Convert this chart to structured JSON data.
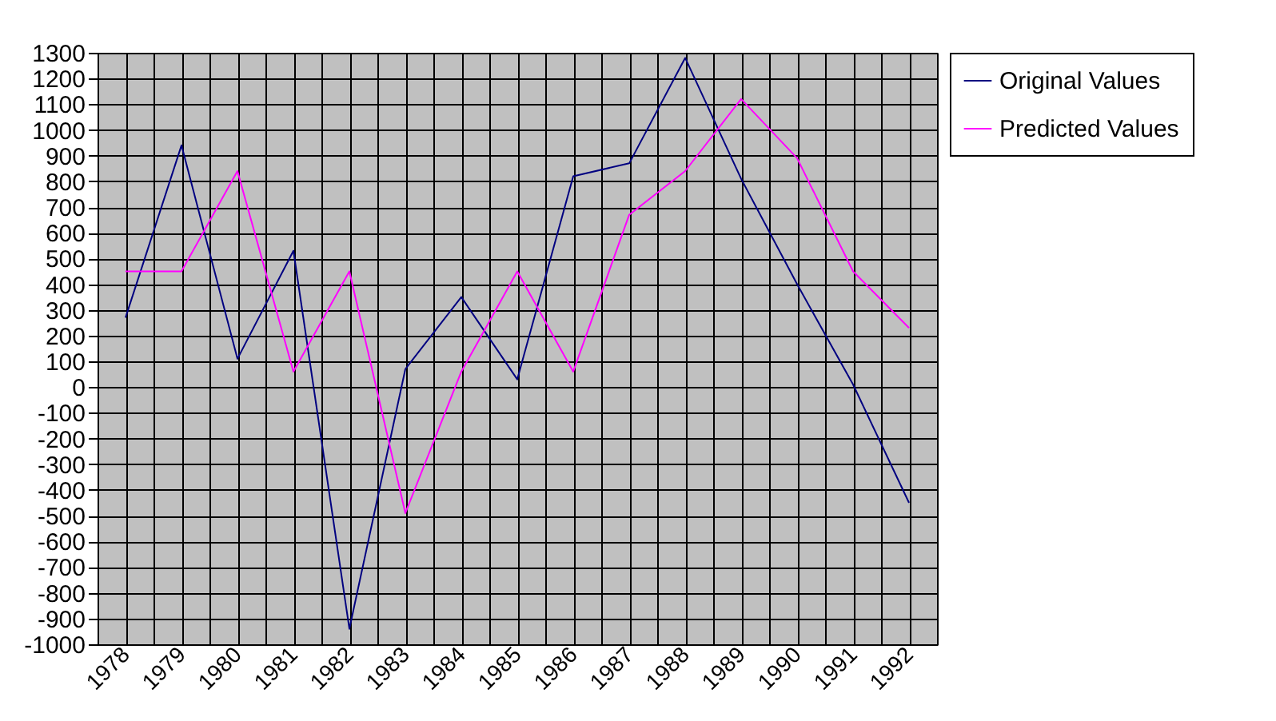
{
  "chart_data": {
    "type": "line",
    "categories": [
      "1978",
      "1979",
      "1980",
      "1981",
      "1982",
      "1983",
      "1984",
      "1985",
      "1986",
      "1987",
      "1988",
      "1989",
      "1990",
      "1991",
      "1992"
    ],
    "series": [
      {
        "name": "Original Values",
        "color": "#000080",
        "values": [
          270,
          940,
          110,
          530,
          -940,
          70,
          350,
          30,
          820,
          870,
          1280,
          810,
          400,
          10,
          -450
        ]
      },
      {
        "name": "Predicted Values",
        "color": "#ff00ff",
        "values": [
          450,
          450,
          840,
          60,
          450,
          -490,
          60,
          450,
          60,
          670,
          840,
          1120,
          890,
          450,
          230
        ]
      }
    ],
    "ylim": [
      -1000,
      1300
    ],
    "yticks": [
      -1000,
      -900,
      -800,
      -700,
      -600,
      -500,
      -400,
      -300,
      -200,
      -100,
      0,
      100,
      200,
      300,
      400,
      500,
      600,
      700,
      800,
      900,
      1000,
      1100,
      1200,
      1300
    ],
    "grid": true,
    "legend": "right",
    "marker": "none",
    "line_style": "solid"
  }
}
